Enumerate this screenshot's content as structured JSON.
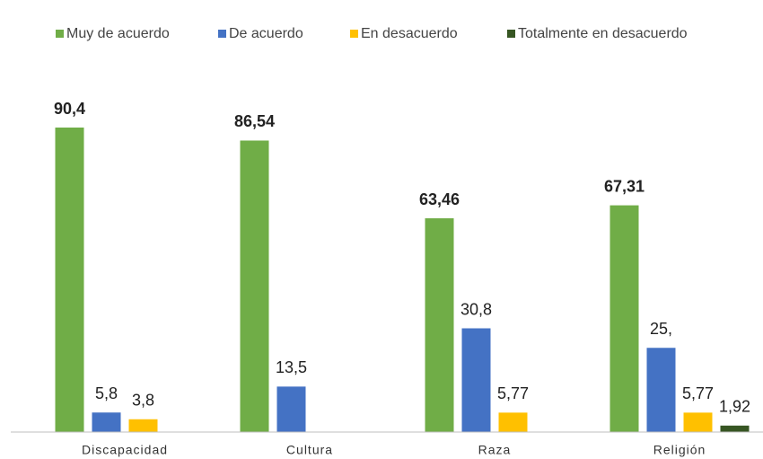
{
  "chart_data": {
    "type": "bar",
    "categories": [
      "Discapacidad",
      "Cultura",
      "Raza",
      "Religión"
    ],
    "series": [
      {
        "name": "Muy de acuerdo",
        "color": "#70ad47",
        "values": [
          90.4,
          86.54,
          63.46,
          67.31
        ],
        "value_labels": [
          "90,4",
          "86,54",
          "63,46",
          "67,31"
        ]
      },
      {
        "name": "De acuerdo",
        "color": "#4472c4",
        "values": [
          5.8,
          13.5,
          30.8,
          25
        ],
        "value_labels": [
          "5,8",
          "13,5",
          "30,8",
          "25,"
        ]
      },
      {
        "name": "En desacuerdo",
        "color": "#ffc000",
        "values": [
          3.8,
          null,
          5.77,
          5.77
        ],
        "value_labels": [
          "3,8",
          null,
          "5,77",
          "5,77"
        ]
      },
      {
        "name": "Totalmente en desacuerdo",
        "color": "#375623",
        "values": [
          null,
          null,
          null,
          1.92
        ],
        "value_labels": [
          null,
          null,
          null,
          "1,92"
        ]
      }
    ],
    "ylim": [
      0,
      100
    ],
    "legend": "top"
  }
}
